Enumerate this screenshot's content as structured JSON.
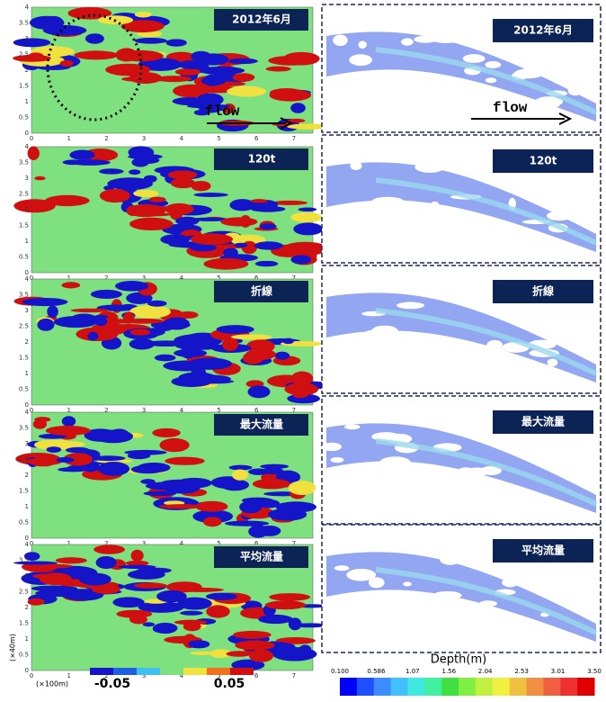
{
  "panels": [
    {
      "label": "2012年6月"
    },
    {
      "label": "120t"
    },
    {
      "label": "折線"
    },
    {
      "label": "最大流量"
    },
    {
      "label": "平均流量"
    }
  ],
  "flow": "flow",
  "x_ticks": [
    0,
    1,
    2,
    3,
    4,
    5,
    6,
    7
  ],
  "y_ticks": [
    0,
    0.5,
    1,
    1.5,
    2,
    2.5,
    3,
    3.5,
    4
  ],
  "y_unit": "(×40m)",
  "x_unit": "(×100m)",
  "left_colorbar": {
    "min": "-0.05",
    "max": "0.05"
  },
  "right_colorbar": {
    "title": "Depth(m)",
    "ticks": [
      "0.100",
      "0.586",
      "1.07",
      "1.56",
      "2.04",
      "2.53",
      "3.01",
      "3.50"
    ]
  }
}
